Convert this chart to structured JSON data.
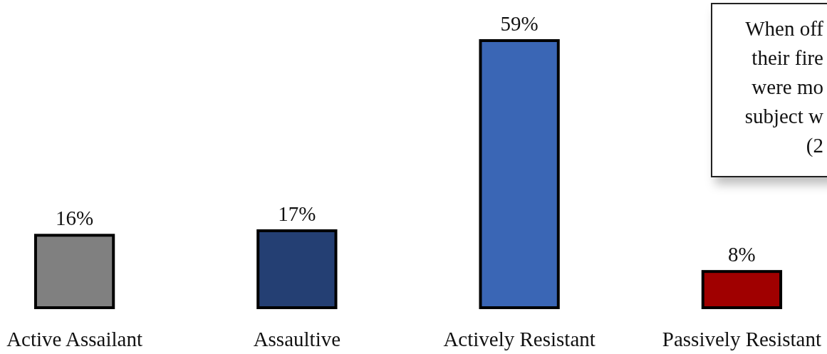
{
  "chart_data": {
    "type": "bar",
    "categories": [
      "Active Assailant",
      "Assaultive",
      "Actively Resistant",
      "Passively Resistant"
    ],
    "values": [
      16,
      17,
      59,
      8
    ],
    "colors": [
      "#808080",
      "#243f73",
      "#3a66b5",
      "#a00000"
    ],
    "value_labels": [
      "16%",
      "17%",
      "59%",
      "8%"
    ],
    "annotations": [
      "When off\ntheir fire\nwere mo\nsubject w\n(2"
    ]
  }
}
